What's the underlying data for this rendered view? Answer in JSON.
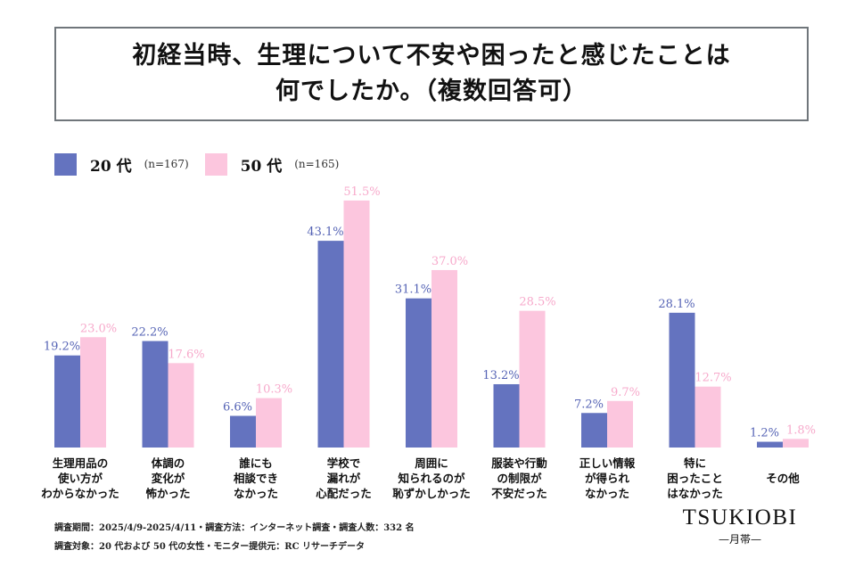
{
  "title": {
    "line1": "初経当時、生理について不安や困ったと感じたことは",
    "line2": "何でしたか。（複数回答可）"
  },
  "legend": [
    {
      "label": "20 代",
      "n": "(n=167)",
      "color": "#6473bf"
    },
    {
      "label": "50 代",
      "n": "(n=165)",
      "color": "#fcc6de"
    }
  ],
  "chart_data": {
    "type": "bar",
    "title": "初経当時、生理について不安や困ったと感じたことは何でしたか。（複数回答可）",
    "xlabel": "",
    "ylabel": "",
    "unit": "%",
    "ylim": [
      0,
      55
    ],
    "grid": false,
    "legend_position": "top-left",
    "categories": [
      "生理用品の\n使い方が\nわからなかった",
      "体調の\n変化が\n怖かった",
      "誰にも\n相談でき\nなかった",
      "学校で\n漏れが\n心配だった",
      "周囲に\n知られるのが\n恥ずかしかった",
      "服装や行動\nの制限が\n不安だった",
      "正しい情報\nが得られ\nなかった",
      "特に\n困ったこと\nはなかった",
      "その他"
    ],
    "series": [
      {
        "name": "20 代 (n=167)",
        "color": "#6473bf",
        "values": [
          19.2,
          22.2,
          6.6,
          43.1,
          31.1,
          13.2,
          7.2,
          28.1,
          1.2
        ],
        "labels": [
          "19.2%",
          "22.2%",
          "6.6%",
          "43.1%",
          "31.1%",
          "13.2%",
          "7.2%",
          "28.1%",
          "1.2%"
        ]
      },
      {
        "name": "50 代 (n=165)",
        "color": "#fcc6de",
        "values": [
          23.0,
          17.6,
          10.3,
          51.5,
          37.0,
          28.5,
          9.7,
          12.7,
          1.8
        ],
        "labels": [
          "23.0%",
          "17.6%",
          "10.3%",
          "51.5%",
          "37.0%",
          "28.5%",
          "9.7%",
          "12.7%",
          "1.8%"
        ]
      }
    ]
  },
  "footer": {
    "line1": "調査期間：2025/4/9-2025/4/11・調査方法：インターネット調査・調査人数：332 名",
    "line2": "調査対象：20 代および 50 代の女性・モニター提供元：RC リサーチデータ"
  },
  "brand": {
    "name": "TSUKIOBI",
    "sub": "—月帯—"
  }
}
